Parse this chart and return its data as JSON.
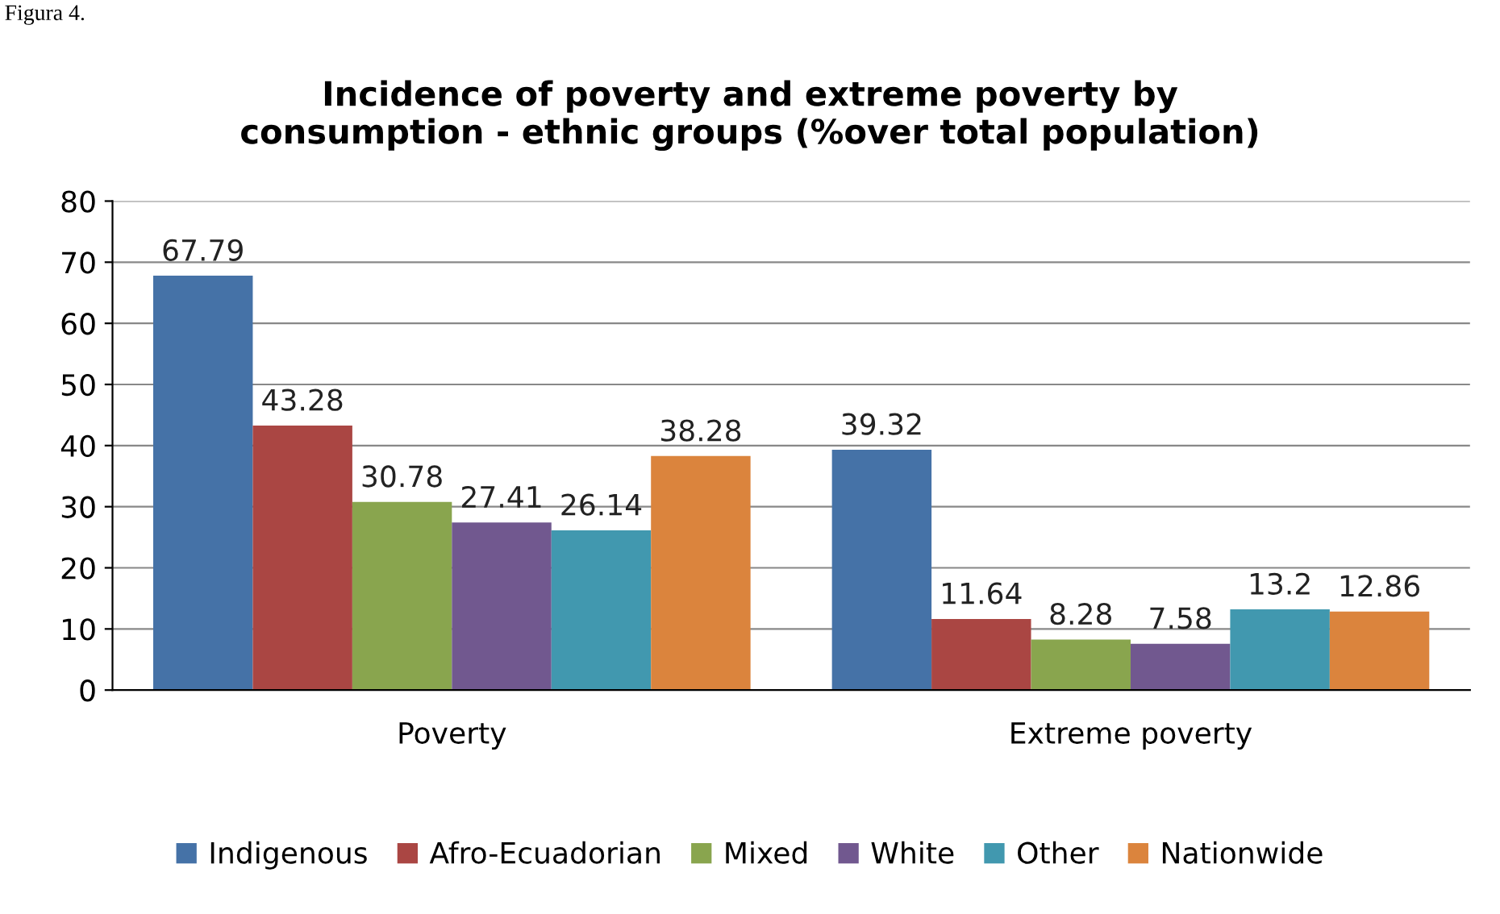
{
  "chart_data": {
    "type": "bar",
    "title": "Incidence of poverty and extreme poverty by\nconsumption - ethnic groups (%over total population)",
    "annotations": [
      "Figura 4."
    ],
    "categories": [
      "Poverty",
      "Extreme poverty"
    ],
    "series": [
      {
        "name": "Indigenous",
        "color": "#4572a7",
        "values": [
          67.79,
          39.32
        ]
      },
      {
        "name": "Afro-Ecuadorian",
        "color": "#aa4643",
        "values": [
          43.28,
          11.64
        ]
      },
      {
        "name": "Mixed",
        "color": "#89a54e",
        "values": [
          30.78,
          8.28
        ]
      },
      {
        "name": "White",
        "color": "#71588f",
        "values": [
          27.41,
          7.58
        ]
      },
      {
        "name": "Other",
        "color": "#4198af",
        "values": [
          26.14,
          13.2
        ]
      },
      {
        "name": "Nationwide",
        "color": "#db843d",
        "values": [
          38.28,
          12.86
        ]
      }
    ],
    "ylim": [
      0,
      80
    ],
    "yticks": [
      0,
      10,
      20,
      30,
      40,
      50,
      60,
      70,
      80
    ],
    "grid": "y",
    "legend": "bottom",
    "data_labels": true
  }
}
